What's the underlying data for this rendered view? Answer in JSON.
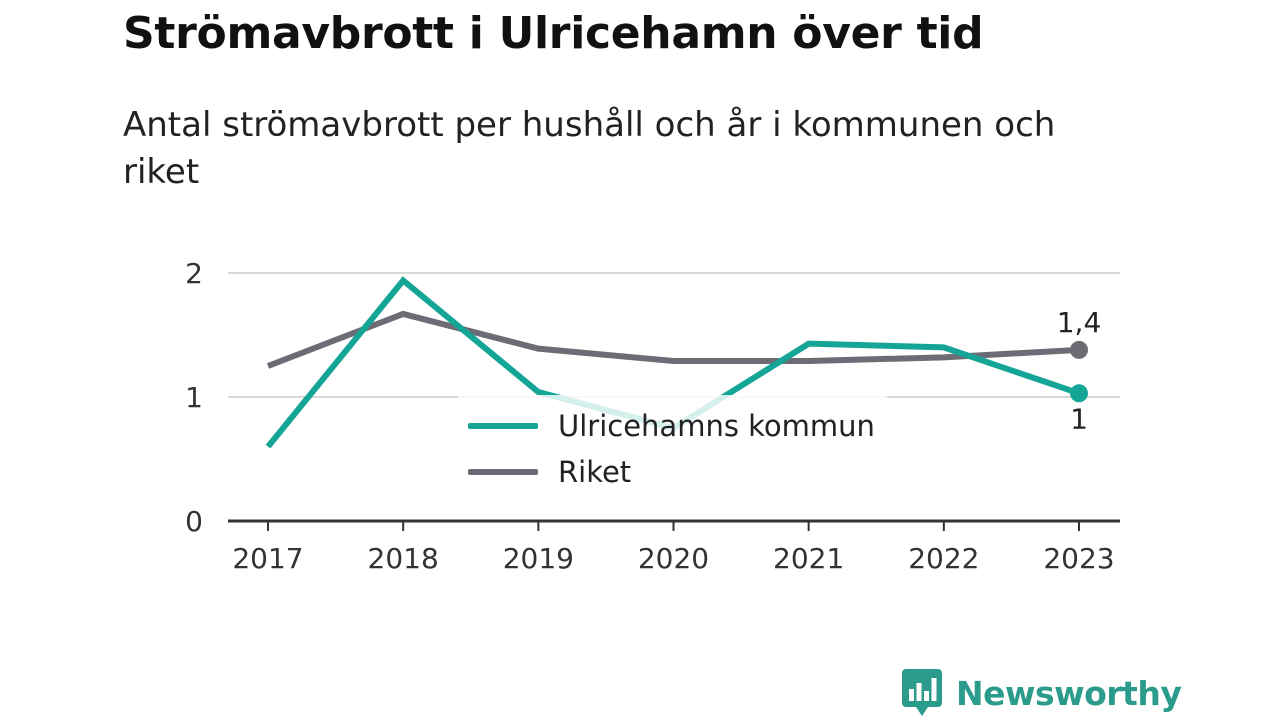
{
  "chart_data": {
    "type": "line",
    "title": "Strömavbrott i Ulricehamn över tid",
    "subtitle": "Antal strömavbrott per hushåll och år i kommunen och riket",
    "x": [
      "2017",
      "2018",
      "2019",
      "2020",
      "2021",
      "2022",
      "2023"
    ],
    "ylim": [
      0,
      2
    ],
    "yticks": [
      "0",
      "1",
      "2"
    ],
    "grid": true,
    "legend": "center",
    "series": [
      {
        "name": "Ulricehamns kommun",
        "color": "#14a596",
        "values": [
          0.6,
          1.94,
          1.04,
          0.75,
          1.43,
          1.4,
          1.03
        ],
        "end_label": "1"
      },
      {
        "name": "Riket",
        "color": "#6d6c74",
        "values": [
          1.25,
          1.67,
          1.39,
          1.29,
          1.29,
          1.32,
          1.38
        ],
        "end_label": "1,4"
      }
    ]
  },
  "brand": {
    "name": "Newsworthy",
    "color": "#2b9b8c",
    "icon": "newsworthy-logo-icon"
  }
}
